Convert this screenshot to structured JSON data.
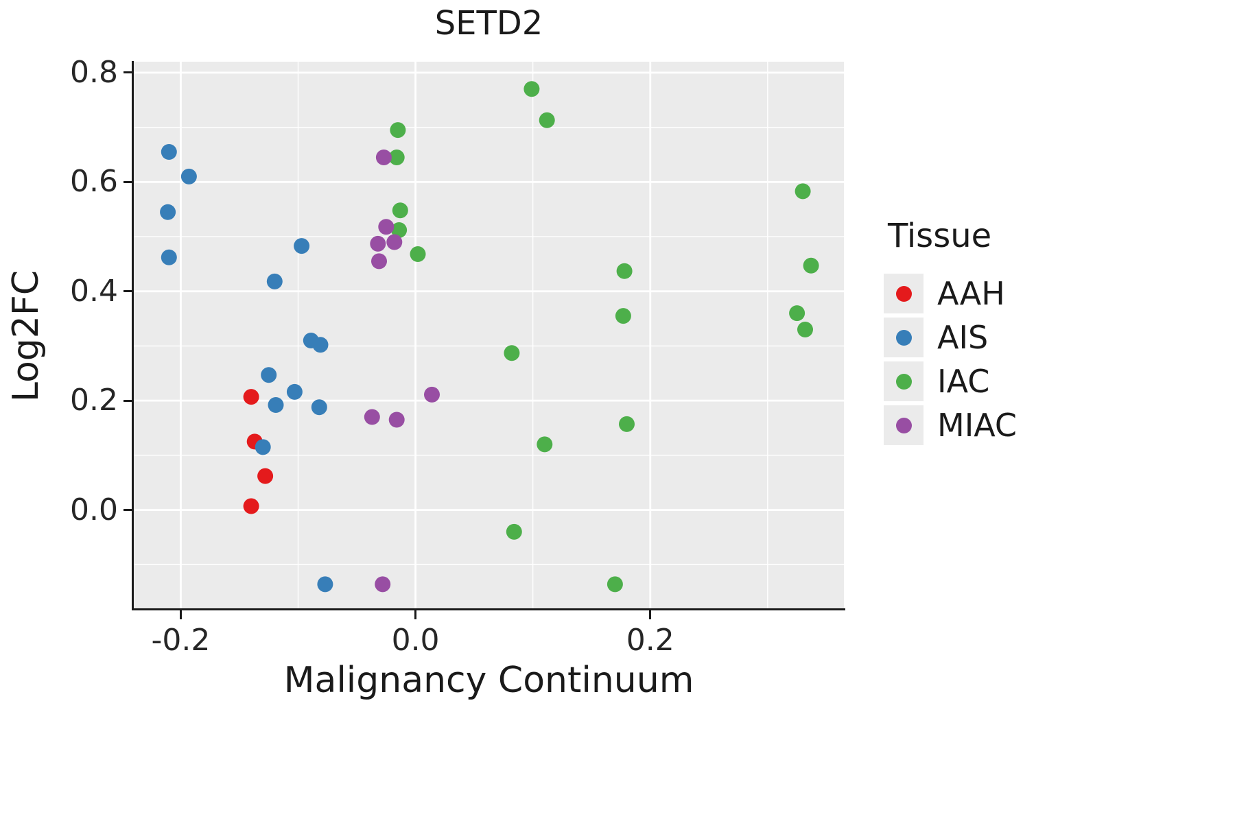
{
  "chart_data": {
    "type": "scatter",
    "title": "SETD2",
    "xlabel": "Malignancy Continuum",
    "ylabel": "Log2FC",
    "xlim": [
      -0.24,
      0.365
    ],
    "ylim": [
      -0.18,
      0.82
    ],
    "x_major_ticks": [
      -0.2,
      0.0,
      0.2
    ],
    "x_tick_labels": [
      "-0.2",
      "0.0",
      "0.2"
    ],
    "x_minor_ticks": [
      -0.1,
      0.1,
      0.3
    ],
    "y_major_ticks": [
      0.0,
      0.2,
      0.4,
      0.6,
      0.8
    ],
    "y_tick_labels": [
      "0.0",
      "0.2",
      "0.4",
      "0.6",
      "0.8"
    ],
    "y_minor_ticks": [
      -0.1,
      0.1,
      0.3,
      0.5,
      0.7
    ],
    "grid": "on",
    "panel_background": "#EBEBEB",
    "grid_major_color": "#FFFFFF",
    "grid_minor_color": "#FFFFFF",
    "axis_color": "#1a1a1a",
    "legend": {
      "title": "Tissue",
      "position": "right"
    },
    "series": [
      {
        "name": "AAH",
        "color": "#E41A1C",
        "points": [
          [
            -0.14,
            0.207
          ],
          [
            -0.137,
            0.125
          ],
          [
            -0.128,
            0.062
          ],
          [
            -0.14,
            0.007
          ]
        ]
      },
      {
        "name": "AIS",
        "color": "#377EB8",
        "points": [
          [
            -0.21,
            0.655
          ],
          [
            -0.193,
            0.61
          ],
          [
            -0.211,
            0.545
          ],
          [
            -0.21,
            0.462
          ],
          [
            -0.097,
            0.483
          ],
          [
            -0.12,
            0.418
          ],
          [
            -0.089,
            0.31
          ],
          [
            -0.081,
            0.302
          ],
          [
            -0.125,
            0.247
          ],
          [
            -0.103,
            0.216
          ],
          [
            -0.119,
            0.192
          ],
          [
            -0.082,
            0.188
          ],
          [
            -0.13,
            0.115
          ],
          [
            -0.077,
            -0.136
          ]
        ]
      },
      {
        "name": "IAC",
        "color": "#4DAF4A",
        "points": [
          [
            0.099,
            0.77
          ],
          [
            0.112,
            0.713
          ],
          [
            -0.015,
            0.695
          ],
          [
            -0.016,
            0.645
          ],
          [
            -0.013,
            0.548
          ],
          [
            -0.014,
            0.512
          ],
          [
            0.002,
            0.468
          ],
          [
            0.33,
            0.583
          ],
          [
            0.337,
            0.447
          ],
          [
            0.178,
            0.437
          ],
          [
            0.325,
            0.36
          ],
          [
            0.332,
            0.33
          ],
          [
            0.177,
            0.355
          ],
          [
            0.082,
            0.287
          ],
          [
            0.18,
            0.157
          ],
          [
            0.11,
            0.12
          ],
          [
            0.084,
            -0.04
          ],
          [
            0.17,
            -0.136
          ]
        ]
      },
      {
        "name": "MIAC",
        "color": "#984EA3",
        "points": [
          [
            -0.027,
            0.645
          ],
          [
            -0.025,
            0.518
          ],
          [
            -0.032,
            0.487
          ],
          [
            -0.018,
            0.49
          ],
          [
            -0.031,
            0.455
          ],
          [
            0.014,
            0.211
          ],
          [
            -0.037,
            0.17
          ],
          [
            -0.016,
            0.165
          ],
          [
            -0.028,
            -0.136
          ]
        ]
      }
    ]
  }
}
